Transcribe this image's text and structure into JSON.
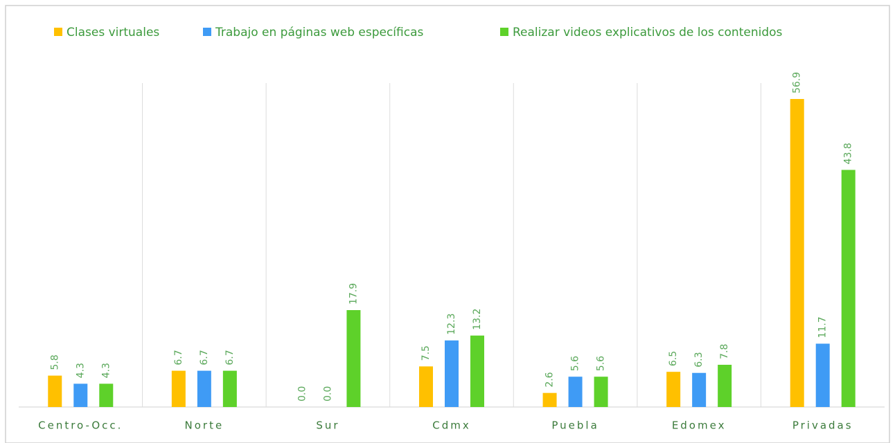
{
  "chart_data": {
    "type": "bar",
    "categories": [
      "Centro-Occ.",
      "Norte",
      "Sur",
      "Cdmx",
      "Puebla",
      "Edomex",
      "Privadas"
    ],
    "series": [
      {
        "name": "Clases virtuales",
        "color": "#FFC000",
        "values": [
          5.8,
          6.7,
          0,
          7.5,
          2.6,
          6.5,
          56.9
        ],
        "value_labels": [
          "5.8",
          "6.7",
          "0.0",
          "7.5",
          "2.6",
          "6.5",
          "56.9"
        ]
      },
      {
        "name": "Trabajo en páginas web específicas",
        "color": "#3F9BF5",
        "values": [
          4.3,
          6.7,
          0,
          12.3,
          5.6,
          6.3,
          11.7
        ],
        "value_labels": [
          "4.3",
          "6.7",
          "0.0",
          "12.3",
          "5.6",
          "6.3",
          "11.7"
        ]
      },
      {
        "name": "Realizar videos explicativos de los contenidos",
        "color": "#5ED12A",
        "values": [
          4.3,
          6.7,
          17.9,
          13.2,
          5.6,
          7.8,
          43.8
        ],
        "value_labels": [
          "4.3",
          "6.7",
          "17.9",
          "13.2",
          "5.6",
          "7.8",
          "43.8"
        ]
      }
    ],
    "legend": "top"
  }
}
